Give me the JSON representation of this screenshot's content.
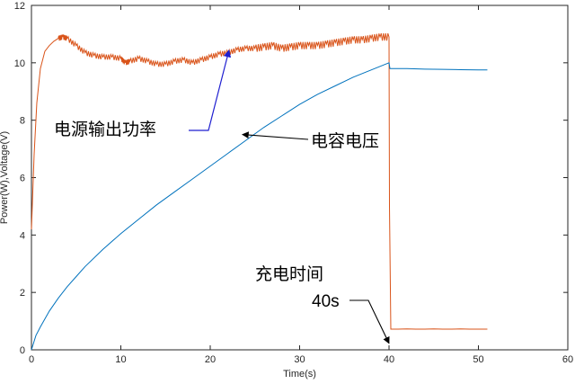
{
  "chart_data": {
    "type": "line",
    "title": "",
    "xlabel": "Time(s)",
    "ylabel": "Power(W),Voltage(V)",
    "xlim": [
      0,
      60
    ],
    "ylim": [
      0,
      12
    ],
    "xticks": [
      "0",
      "10",
      "20",
      "30",
      "40",
      "50",
      "60"
    ],
    "yticks": [
      "0",
      "2",
      "4",
      "6",
      "8",
      "10",
      "12"
    ],
    "grid": false,
    "legend": "none",
    "series": [
      {
        "color": "#D95319",
        "x": [
          0,
          0.3,
          0.6,
          1,
          1.5,
          2,
          2.5,
          3,
          3.5,
          4,
          5,
          6,
          7,
          8,
          9,
          10,
          10.5,
          11,
          12,
          13,
          14,
          15,
          16,
          17,
          18,
          19,
          20,
          21,
          22,
          23,
          24,
          25,
          26,
          27,
          28,
          29,
          30,
          31,
          32,
          33,
          34,
          35,
          36,
          37,
          38,
          39,
          40,
          40.05,
          40.2,
          41,
          42,
          43,
          44,
          45,
          46,
          47,
          48,
          49,
          50,
          51
        ],
        "y": [
          4.2,
          6.8,
          8.6,
          9.8,
          10.4,
          10.6,
          10.75,
          10.85,
          10.9,
          10.85,
          10.6,
          10.35,
          10.25,
          10.2,
          10.2,
          10.15,
          10.0,
          10.05,
          10.15,
          10.05,
          9.95,
          9.95,
          10.05,
          10.1,
          10.0,
          10.1,
          10.2,
          10.3,
          10.35,
          10.45,
          10.5,
          10.5,
          10.55,
          10.6,
          10.5,
          10.55,
          10.6,
          10.6,
          10.6,
          10.65,
          10.7,
          10.75,
          10.8,
          10.8,
          10.85,
          10.9,
          10.9,
          5.0,
          0.72,
          0.72,
          0.73,
          0.72,
          0.72,
          0.73,
          0.72,
          0.72,
          0.73,
          0.72,
          0.72,
          0.72
        ]
      },
      {
        "color": "#0072BD",
        "x": [
          0,
          0.5,
          1,
          2,
          3,
          4,
          5,
          6,
          8,
          10,
          12,
          14,
          16,
          18,
          20,
          22,
          24,
          26,
          28,
          30,
          32,
          34,
          36,
          38,
          40,
          40.1,
          41,
          42,
          44,
          46,
          48,
          50,
          51
        ],
        "y": [
          0.0,
          0.5,
          0.8,
          1.35,
          1.8,
          2.2,
          2.55,
          2.9,
          3.5,
          4.05,
          4.55,
          5.05,
          5.5,
          5.95,
          6.4,
          6.85,
          7.3,
          7.75,
          8.15,
          8.55,
          8.9,
          9.2,
          9.5,
          9.75,
          10.0,
          9.8,
          9.8,
          9.8,
          9.78,
          9.77,
          9.76,
          9.75,
          9.75
        ]
      }
    ],
    "annotations": [
      {
        "text": "电源输出功率",
        "point": [
          22.1,
          10.5
        ]
      },
      {
        "text": "电容电压",
        "point": [
          23.6,
          7.5
        ]
      },
      {
        "text": "充电时间",
        "point": null
      },
      {
        "text": "40s",
        "point": [
          40,
          0.1
        ]
      }
    ]
  }
}
